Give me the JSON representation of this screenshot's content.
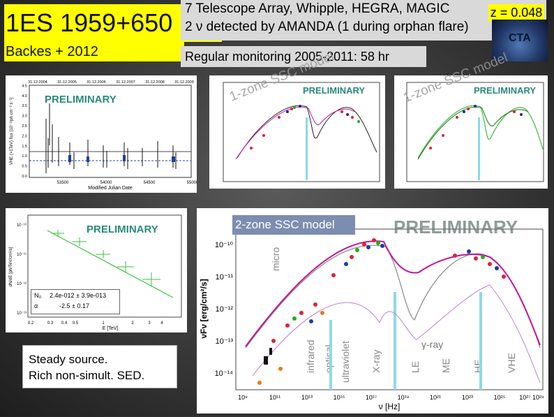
{
  "title": "1ES 1959+650",
  "subtitle": "Backes + 2012",
  "info_line1": "7 Telescope Array, Whipple, HEGRA, MAGIC",
  "info_line2": "2 ν detected by AMANDA (1 during orphan flare)",
  "redshift": "z = 0.048",
  "cta_logo": "CTA",
  "monitoring": "Regular monitoring 2005-2011:  58 hr",
  "preliminary": "PRELIMINARY",
  "one_zone_label": "1-zone SSC model",
  "two_zone_label": "2-zone SSC model",
  "steady_line1": "Steady source.",
  "steady_line2": "Rich non-simult. SED.",
  "lightcurve": {
    "ylabel": "VHE (>1TeV) flux [10⁻¹¹ph cm⁻² s⁻¹]",
    "xlabel": "Modified Julian Date",
    "top_ticks": [
      "31.12.2004",
      "31.12.2005",
      "31.12.2006",
      "31.12.2007",
      "31.12.2008",
      "31.12.2009"
    ],
    "x_ticks": [
      "53500",
      "54000",
      "54500",
      "55000"
    ],
    "y_ticks": [
      "0.0",
      "0.5",
      "1.0",
      "1.5",
      "2.0",
      "2.5",
      "3.0",
      "3.5",
      "4.0",
      "4.5"
    ]
  },
  "spectrum": {
    "ylabel": "dN/dE [ph/TeV/cm²/s]",
    "xlabel": "E [TeV]",
    "x_ticks": [
      "0.2",
      "0.3",
      "0.4",
      "0.5",
      "1",
      "2",
      "3",
      "4"
    ],
    "y_ticks": [
      "10⁻¹⁰",
      "10⁻¹¹",
      "10⁻¹²",
      "10⁻¹³"
    ],
    "n0_label": "N₀",
    "n0_value": "2.4e-012 ± 3.9e-013",
    "alpha_label": "α",
    "alpha_value": "-2.5 ±  0.17"
  },
  "sed": {
    "ylabel": "νFν [erg/cm²/s]",
    "xlabel": "ν [Hz]",
    "bands": [
      "micro",
      "infrared",
      "optical",
      "ultraviolet",
      "X-ray",
      "γ-ray",
      "LE",
      "ME",
      "HE",
      "VHE"
    ],
    "y_ticks": [
      "10⁻¹⁰",
      "10⁻¹¹",
      "10⁻¹²",
      "10⁻¹³",
      "10⁻¹⁴"
    ],
    "x_ticks": [
      "10⁹",
      "10¹¹",
      "10¹³",
      "10¹⁵",
      "10¹⁷",
      "10¹⁹",
      "10²¹",
      "10²³",
      "10²⁵",
      "10²⁷ 10²⁸"
    ]
  },
  "colors": {
    "title_bg": "#ffff00",
    "info_bg": "#d9d9d9",
    "prelim": "#2a8a7a",
    "model": "#c0179c",
    "fit": "#3cbf3c"
  }
}
